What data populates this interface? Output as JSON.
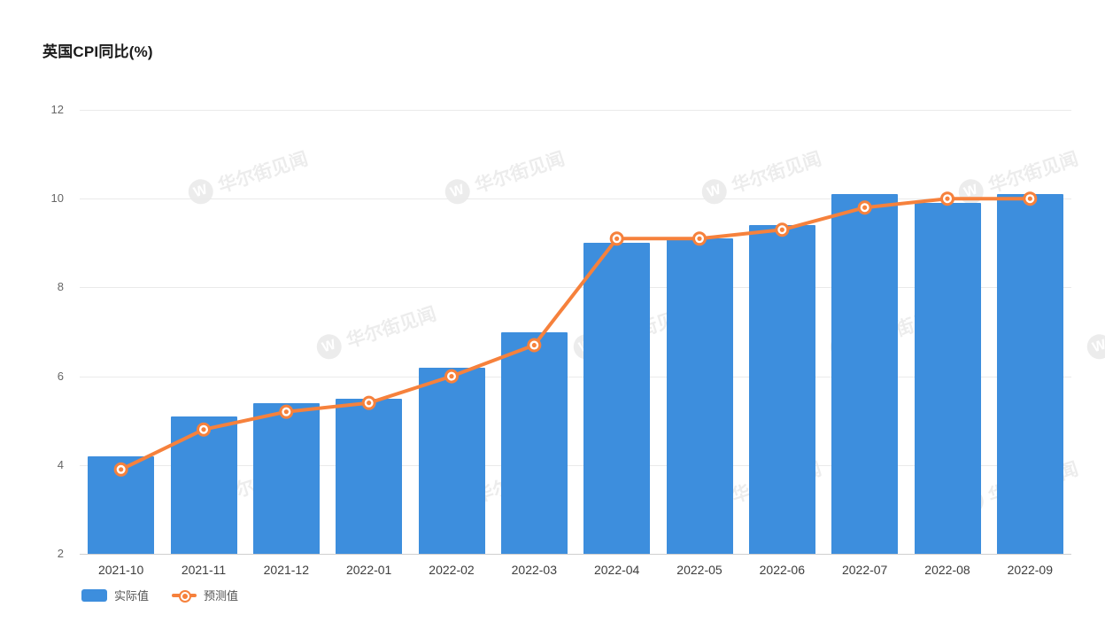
{
  "watermark": {
    "logo": "W",
    "text": "华尔街见闻"
  },
  "chart_data": {
    "type": "bar",
    "title": "英国CPI同比(%)",
    "categories": [
      "2021-10",
      "2021-11",
      "2021-12",
      "2022-01",
      "2022-02",
      "2022-03",
      "2022-04",
      "2022-05",
      "2022-06",
      "2022-07",
      "2022-08",
      "2022-09"
    ],
    "series": [
      {
        "name": "实际值",
        "type": "bar",
        "color": "#3d8edd",
        "values": [
          4.2,
          5.1,
          5.4,
          5.5,
          6.2,
          7.0,
          9.0,
          9.1,
          9.4,
          10.1,
          9.9,
          10.1
        ]
      },
      {
        "name": "预测值",
        "type": "line",
        "color": "#f6813c",
        "values": [
          3.9,
          4.8,
          5.2,
          5.4,
          6.0,
          6.7,
          9.1,
          9.1,
          9.3,
          9.8,
          10.0,
          10.0
        ]
      }
    ],
    "xlabel": "",
    "ylabel": "",
    "ylim": [
      2,
      12
    ],
    "y_ticks": [
      2,
      4,
      6,
      8,
      10,
      12
    ],
    "grid": true,
    "legend_position": "bottom-left"
  }
}
